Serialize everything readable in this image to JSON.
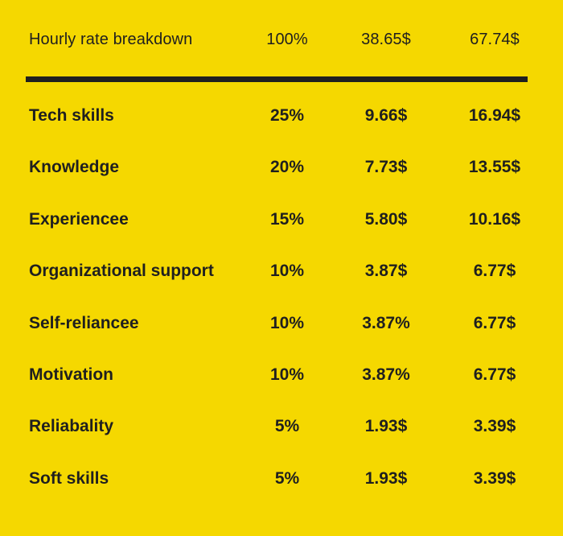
{
  "chart_data": {
    "type": "table",
    "columns": [
      "Hourly rate breakdown",
      "100%",
      "38.65$",
      "67.74$"
    ],
    "rows": [
      {
        "label": "Tech skills",
        "share": "25%",
        "low": "9.66$",
        "high": "16.94$"
      },
      {
        "label": "Knowledge",
        "share": "20%",
        "low": "7.73$",
        "high": "13.55$"
      },
      {
        "label": "Experiencee",
        "share": "15%",
        "low": "5.80$",
        "high": "10.16$"
      },
      {
        "label": "Organizational support",
        "share": "10%",
        "low": "3.87$",
        "high": "6.77$"
      },
      {
        "label": "Self-reliancee",
        "share": "10%",
        "low": "3.87%",
        "high": "6.77$"
      },
      {
        "label": "Motivation",
        "share": "10%",
        "low": "3.87%",
        "high": "6.77$"
      },
      {
        "label": "Reliabality",
        "share": "5%",
        "low": "1.93$",
        "high": "3.39$"
      },
      {
        "label": "Soft skills",
        "share": "5%",
        "low": "1.93$",
        "high": "3.39$"
      }
    ]
  },
  "colors": {
    "background": "#f5d800",
    "text": "#1f1f1f",
    "divider": "#1f1f1f"
  }
}
